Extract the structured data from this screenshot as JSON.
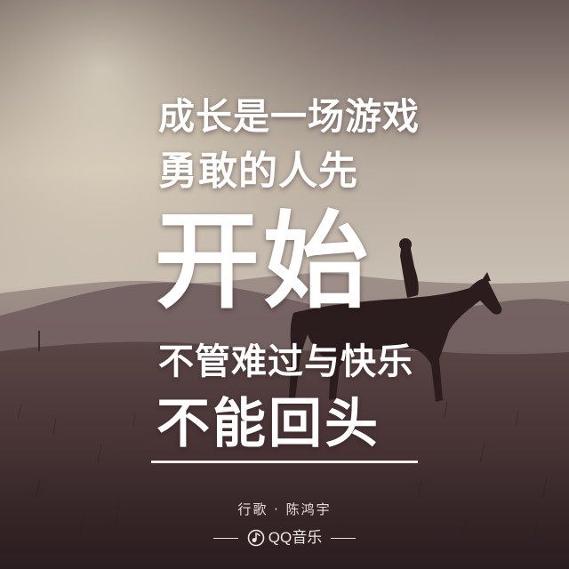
{
  "lyrics": {
    "line1": "成长是一场游戏",
    "line2": "勇敢的人先",
    "line3": "开始",
    "line4": "不管难过与快乐",
    "line5": "不能回头"
  },
  "credit": {
    "song_and_artist": "行歌 · 陈鸿宇"
  },
  "brand": {
    "name": "QQ音乐",
    "icon": "qq-music-icon"
  },
  "colors": {
    "text": "#ffffff",
    "sky_top": "#8a7b75",
    "sky_glow": "#e2dac8",
    "ground": "#3c2a2c"
  }
}
